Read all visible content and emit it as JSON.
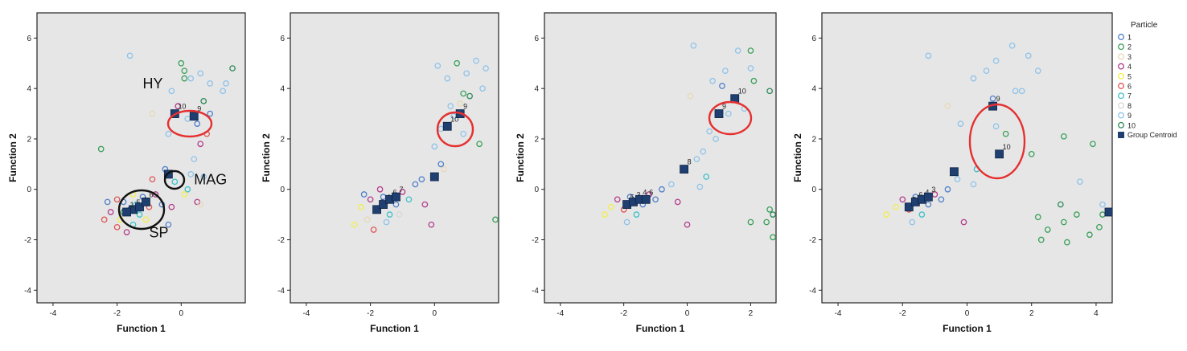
{
  "legend": {
    "title": "Particle",
    "items": [
      {
        "label": "1",
        "color": "#4f7fc9"
      },
      {
        "label": "2",
        "color": "#3aa05a"
      },
      {
        "label": "3",
        "color": "#e6d9b8"
      },
      {
        "label": "4",
        "color": "#b23a8a"
      },
      {
        "label": "5",
        "color": "#f3ee4a"
      },
      {
        "label": "6",
        "color": "#e05555"
      },
      {
        "label": "7",
        "color": "#3ec1c9"
      },
      {
        "label": "8",
        "color": "#d8d8d8"
      },
      {
        "label": "9",
        "color": "#8fc3ea"
      },
      {
        "label": "10",
        "color": "#2f8a5a"
      }
    ],
    "centroid_label": "Group Centroid",
    "centroid_color": "#1f3f70"
  },
  "annotation_color": "#e53030",
  "chart_data": [
    {
      "type": "scatter",
      "xlabel": "Function 1",
      "ylabel": "Function 2",
      "xlim": [
        -4.5,
        2.0
      ],
      "ylim": [
        -4.5,
        7.0
      ],
      "xticks": [
        -4,
        -2,
        0
      ],
      "yticks": [
        -4,
        -2,
        0,
        2,
        4,
        6
      ],
      "points": [
        {
          "x": -1.8,
          "y": -0.5,
          "c": 0
        },
        {
          "x": -1.6,
          "y": -0.8,
          "c": 0
        },
        {
          "x": -1.4,
          "y": -0.6,
          "c": 6
        },
        {
          "x": -2.0,
          "y": -0.4,
          "c": 5
        },
        {
          "x": -2.2,
          "y": -0.9,
          "c": 3
        },
        {
          "x": -1.9,
          "y": -1.2,
          "c": 4
        },
        {
          "x": -1.5,
          "y": -1.4,
          "c": 6
        },
        {
          "x": -1.2,
          "y": -0.3,
          "c": 0
        },
        {
          "x": -1.0,
          "y": -0.7,
          "c": 5
        },
        {
          "x": -2.4,
          "y": -1.2,
          "c": 5
        },
        {
          "x": -1.7,
          "y": -1.7,
          "c": 3
        },
        {
          "x": -2.3,
          "y": -0.5,
          "c": 0
        },
        {
          "x": -1.3,
          "y": -1.0,
          "c": 6
        },
        {
          "x": -0.9,
          "y": 0.4,
          "c": 5
        },
        {
          "x": -1.1,
          "y": -1.2,
          "c": 4
        },
        {
          "x": -2.0,
          "y": -1.5,
          "c": 5
        },
        {
          "x": -0.8,
          "y": -0.2,
          "c": 3
        },
        {
          "x": -1.5,
          "y": -0.2,
          "c": 4
        },
        {
          "x": -2.5,
          "y": 1.6,
          "c": 1
        },
        {
          "x": -1.8,
          "y": -0.9,
          "c": 9
        },
        {
          "x": -0.6,
          "y": -0.6,
          "c": 0
        },
        {
          "x": -0.3,
          "y": -0.7,
          "c": 3
        },
        {
          "x": -0.5,
          "y": 0.8,
          "c": 0
        },
        {
          "x": -0.2,
          "y": 0.3,
          "c": 6
        },
        {
          "x": 0.3,
          "y": 0.6,
          "c": 8
        },
        {
          "x": 0.2,
          "y": 0.0,
          "c": 6
        },
        {
          "x": 0.5,
          "y": -0.5,
          "c": 3
        },
        {
          "x": 0.7,
          "y": 0.5,
          "c": 8
        },
        {
          "x": -0.4,
          "y": -1.4,
          "c": 0
        },
        {
          "x": 0.1,
          "y": -0.2,
          "c": 4
        },
        {
          "x": -1.6,
          "y": 5.3,
          "c": 8
        },
        {
          "x": 0.0,
          "y": 5.0,
          "c": 1
        },
        {
          "x": 0.1,
          "y": 4.7,
          "c": 1
        },
        {
          "x": 0.3,
          "y": 4.4,
          "c": 8
        },
        {
          "x": 0.6,
          "y": 4.6,
          "c": 8
        },
        {
          "x": 0.9,
          "y": 4.2,
          "c": 8
        },
        {
          "x": 1.6,
          "y": 4.8,
          "c": 9
        },
        {
          "x": 1.3,
          "y": 3.9,
          "c": 8
        },
        {
          "x": 0.7,
          "y": 3.5,
          "c": 9
        },
        {
          "x": -0.3,
          "y": 3.9,
          "c": 8
        },
        {
          "x": -0.1,
          "y": 3.3,
          "c": 3
        },
        {
          "x": 0.2,
          "y": 2.8,
          "c": 8
        },
        {
          "x": 0.5,
          "y": 2.6,
          "c": 0
        },
        {
          "x": 0.8,
          "y": 2.2,
          "c": 5
        },
        {
          "x": 0.6,
          "y": 1.8,
          "c": 3
        },
        {
          "x": -0.9,
          "y": 3.0,
          "c": 2
        },
        {
          "x": -0.4,
          "y": 2.2,
          "c": 8
        },
        {
          "x": 0.4,
          "y": 1.2,
          "c": 8
        },
        {
          "x": 0.1,
          "y": 4.4,
          "c": 1
        },
        {
          "x": 0.6,
          "y": -0.6,
          "c": 2
        },
        {
          "x": 1.4,
          "y": 4.2,
          "c": 8
        },
        {
          "x": 0.9,
          "y": 3.0,
          "c": 0
        }
      ],
      "centroids": [
        {
          "x": -1.5,
          "y": -0.8,
          "label": "5"
        },
        {
          "x": -1.3,
          "y": -0.7,
          "label": "4"
        },
        {
          "x": -1.1,
          "y": -0.5,
          "label": "6"
        },
        {
          "x": -1.7,
          "y": -0.9,
          "label": "1"
        },
        {
          "x": -0.4,
          "y": 0.6,
          "label": ""
        },
        {
          "x": -0.2,
          "y": 3.0,
          "label": "10"
        },
        {
          "x": 0.4,
          "y": 2.9,
          "label": "9"
        }
      ],
      "annotations": [
        {
          "text": "HY",
          "x": -1.2,
          "y": 4.0
        },
        {
          "text": "MAG",
          "x": 0.4,
          "y": 0.2
        },
        {
          "text": "SP",
          "x": -1.0,
          "y": -1.9
        }
      ]
    },
    {
      "type": "scatter",
      "xlabel": "Function 1",
      "ylabel": "Function 2",
      "xlim": [
        -4.5,
        2.0
      ],
      "ylim": [
        -4.5,
        7.0
      ],
      "xticks": [
        -4,
        -2,
        0
      ],
      "yticks": [
        -4,
        -2,
        0,
        2,
        4,
        6
      ],
      "points": [
        {
          "x": -2.0,
          "y": -0.4,
          "c": 3
        },
        {
          "x": -1.8,
          "y": -0.8,
          "c": 5
        },
        {
          "x": -1.6,
          "y": -0.3,
          "c": 0
        },
        {
          "x": -1.4,
          "y": -1.0,
          "c": 6
        },
        {
          "x": -2.3,
          "y": -0.7,
          "c": 4
        },
        {
          "x": -2.1,
          "y": -1.2,
          "c": 2
        },
        {
          "x": -1.2,
          "y": -0.6,
          "c": 0
        },
        {
          "x": -1.0,
          "y": -0.1,
          "c": 3
        },
        {
          "x": -2.5,
          "y": -1.4,
          "c": 4
        },
        {
          "x": -1.9,
          "y": -1.6,
          "c": 5
        },
        {
          "x": -0.8,
          "y": -0.4,
          "c": 6
        },
        {
          "x": -1.5,
          "y": -1.3,
          "c": 8
        },
        {
          "x": -0.6,
          "y": 0.2,
          "c": 0
        },
        {
          "x": -0.3,
          "y": -0.6,
          "c": 3
        },
        {
          "x": -1.7,
          "y": 0.0,
          "c": 3
        },
        {
          "x": -2.2,
          "y": -0.2,
          "c": 0
        },
        {
          "x": -0.1,
          "y": -1.4,
          "c": 3
        },
        {
          "x": 0.3,
          "y": 0.8,
          "c": 2
        },
        {
          "x": 0.0,
          "y": 1.7,
          "c": 8
        },
        {
          "x": 0.2,
          "y": 2.4,
          "c": 8
        },
        {
          "x": 0.5,
          "y": 3.3,
          "c": 8
        },
        {
          "x": 0.1,
          "y": 4.9,
          "c": 8
        },
        {
          "x": 0.7,
          "y": 5.0,
          "c": 1
        },
        {
          "x": 1.0,
          "y": 4.6,
          "c": 8
        },
        {
          "x": 1.3,
          "y": 5.1,
          "c": 8
        },
        {
          "x": 1.6,
          "y": 4.8,
          "c": 8
        },
        {
          "x": 1.1,
          "y": 3.7,
          "c": 9
        },
        {
          "x": 1.5,
          "y": 4.0,
          "c": 8
        },
        {
          "x": 1.4,
          "y": 1.8,
          "c": 1
        },
        {
          "x": 0.9,
          "y": 2.2,
          "c": 8
        },
        {
          "x": 0.6,
          "y": 2.9,
          "c": 8
        },
        {
          "x": 0.8,
          "y": 3.4,
          "c": 2
        },
        {
          "x": 0.4,
          "y": 4.4,
          "c": 8
        },
        {
          "x": -0.4,
          "y": 0.4,
          "c": 0
        },
        {
          "x": 0.2,
          "y": 1.0,
          "c": 0
        },
        {
          "x": -1.1,
          "y": -1.0,
          "c": 7
        },
        {
          "x": 1.9,
          "y": -1.2,
          "c": 1
        },
        {
          "x": 0.9,
          "y": 3.8,
          "c": 1
        }
      ],
      "centroids": [
        {
          "x": -1.8,
          "y": -0.8,
          "label": "5"
        },
        {
          "x": -1.6,
          "y": -0.6,
          "label": "4"
        },
        {
          "x": -1.4,
          "y": -0.4,
          "label": "6"
        },
        {
          "x": -1.2,
          "y": -0.3,
          "label": "7"
        },
        {
          "x": 0.0,
          "y": 0.5,
          "label": ""
        },
        {
          "x": 0.4,
          "y": 2.5,
          "label": "10"
        },
        {
          "x": 0.8,
          "y": 3.0,
          "label": "9"
        }
      ],
      "annotations": []
    },
    {
      "type": "scatter",
      "xlabel": "Function 1",
      "ylabel": "Function 2",
      "xlim": [
        -4.5,
        2.8
      ],
      "ylim": [
        -4.5,
        7.0
      ],
      "xticks": [
        -4,
        -2,
        0,
        2
      ],
      "yticks": [
        -4,
        -2,
        0,
        2,
        4,
        6
      ],
      "points": [
        {
          "x": -2.2,
          "y": -0.4,
          "c": 3
        },
        {
          "x": -2.0,
          "y": -0.8,
          "c": 5
        },
        {
          "x": -1.8,
          "y": -0.3,
          "c": 0
        },
        {
          "x": -1.6,
          "y": -1.0,
          "c": 6
        },
        {
          "x": -2.4,
          "y": -0.7,
          "c": 4
        },
        {
          "x": -2.6,
          "y": -1.0,
          "c": 4
        },
        {
          "x": -1.4,
          "y": -0.6,
          "c": 0
        },
        {
          "x": -1.2,
          "y": -0.2,
          "c": 3
        },
        {
          "x": -1.9,
          "y": -1.3,
          "c": 8
        },
        {
          "x": -1.0,
          "y": -0.4,
          "c": 0
        },
        {
          "x": -0.8,
          "y": 0.0,
          "c": 0
        },
        {
          "x": -0.5,
          "y": 0.2,
          "c": 8
        },
        {
          "x": -0.3,
          "y": -0.5,
          "c": 3
        },
        {
          "x": 0.0,
          "y": -1.4,
          "c": 3
        },
        {
          "x": 0.4,
          "y": 0.1,
          "c": 8
        },
        {
          "x": 0.6,
          "y": 0.5,
          "c": 6
        },
        {
          "x": 0.3,
          "y": 1.2,
          "c": 8
        },
        {
          "x": 0.7,
          "y": 2.3,
          "c": 8
        },
        {
          "x": 0.1,
          "y": 3.7,
          "c": 2
        },
        {
          "x": 0.2,
          "y": 5.7,
          "c": 8
        },
        {
          "x": 0.8,
          "y": 4.3,
          "c": 8
        },
        {
          "x": 1.2,
          "y": 4.7,
          "c": 8
        },
        {
          "x": 1.6,
          "y": 5.5,
          "c": 8
        },
        {
          "x": 2.0,
          "y": 5.5,
          "c": 1
        },
        {
          "x": 2.0,
          "y": 4.8,
          "c": 8
        },
        {
          "x": 2.1,
          "y": 4.3,
          "c": 1
        },
        {
          "x": 1.3,
          "y": 3.0,
          "c": 8
        },
        {
          "x": 0.9,
          "y": 2.0,
          "c": 8
        },
        {
          "x": 1.8,
          "y": 3.2,
          "c": 8
        },
        {
          "x": 2.5,
          "y": -1.3,
          "c": 1
        },
        {
          "x": 2.6,
          "y": -0.8,
          "c": 1
        },
        {
          "x": 2.7,
          "y": -1.9,
          "c": 1
        },
        {
          "x": 2.0,
          "y": -1.3,
          "c": 1
        },
        {
          "x": 2.7,
          "y": -1.0,
          "c": 9
        },
        {
          "x": 0.5,
          "y": 1.5,
          "c": 8
        },
        {
          "x": 1.1,
          "y": 4.1,
          "c": 0
        },
        {
          "x": 2.6,
          "y": 3.9,
          "c": 9
        }
      ],
      "centroids": [
        {
          "x": -1.9,
          "y": -0.6,
          "label": "5"
        },
        {
          "x": -1.7,
          "y": -0.5,
          "label": "3"
        },
        {
          "x": -1.5,
          "y": -0.4,
          "label": "4"
        },
        {
          "x": -1.3,
          "y": -0.4,
          "label": "6"
        },
        {
          "x": -0.1,
          "y": 0.8,
          "label": "8"
        },
        {
          "x": 1.0,
          "y": 3.0,
          "label": "9"
        },
        {
          "x": 1.5,
          "y": 3.6,
          "label": "10"
        }
      ],
      "annotations": []
    },
    {
      "type": "scatter",
      "xlabel": "Function 1",
      "ylabel": "Function 2",
      "xlim": [
        -4.5,
        4.5
      ],
      "ylim": [
        -4.5,
        7.0
      ],
      "xticks": [
        -4,
        -2,
        0,
        2,
        4
      ],
      "yticks": [
        -4,
        -2,
        0,
        2,
        4,
        6
      ],
      "points": [
        {
          "x": -2.0,
          "y": -0.4,
          "c": 3
        },
        {
          "x": -1.8,
          "y": -0.8,
          "c": 5
        },
        {
          "x": -1.6,
          "y": -0.3,
          "c": 0
        },
        {
          "x": -1.4,
          "y": -1.0,
          "c": 6
        },
        {
          "x": -2.2,
          "y": -0.7,
          "c": 4
        },
        {
          "x": -2.5,
          "y": -1.0,
          "c": 4
        },
        {
          "x": -1.2,
          "y": -0.6,
          "c": 0
        },
        {
          "x": -1.0,
          "y": -0.2,
          "c": 3
        },
        {
          "x": -1.7,
          "y": -1.3,
          "c": 8
        },
        {
          "x": -0.8,
          "y": -0.4,
          "c": 0
        },
        {
          "x": -0.6,
          "y": 0.0,
          "c": 0
        },
        {
          "x": -0.3,
          "y": 0.4,
          "c": 8
        },
        {
          "x": -0.1,
          "y": -1.3,
          "c": 3
        },
        {
          "x": 0.2,
          "y": 0.2,
          "c": 8
        },
        {
          "x": 0.3,
          "y": 0.8,
          "c": 6
        },
        {
          "x": -0.2,
          "y": 2.6,
          "c": 8
        },
        {
          "x": -0.6,
          "y": 3.3,
          "c": 2
        },
        {
          "x": -1.2,
          "y": 5.3,
          "c": 8
        },
        {
          "x": 0.2,
          "y": 4.4,
          "c": 8
        },
        {
          "x": 0.6,
          "y": 4.7,
          "c": 8
        },
        {
          "x": 0.9,
          "y": 5.1,
          "c": 8
        },
        {
          "x": 1.4,
          "y": 5.7,
          "c": 8
        },
        {
          "x": 1.9,
          "y": 5.3,
          "c": 8
        },
        {
          "x": 2.2,
          "y": 4.7,
          "c": 8
        },
        {
          "x": 1.7,
          "y": 3.9,
          "c": 8
        },
        {
          "x": 0.9,
          "y": 2.5,
          "c": 8
        },
        {
          "x": 1.2,
          "y": 2.2,
          "c": 1
        },
        {
          "x": 2.0,
          "y": 1.4,
          "c": 1
        },
        {
          "x": 2.2,
          "y": -1.1,
          "c": 1
        },
        {
          "x": 2.5,
          "y": -1.6,
          "c": 1
        },
        {
          "x": 3.0,
          "y": -1.3,
          "c": 1
        },
        {
          "x": 3.4,
          "y": -1.0,
          "c": 1
        },
        {
          "x": 3.8,
          "y": -1.8,
          "c": 1
        },
        {
          "x": 4.2,
          "y": -1.0,
          "c": 1
        },
        {
          "x": 2.3,
          "y": -2.0,
          "c": 1
        },
        {
          "x": 3.1,
          "y": -2.1,
          "c": 1
        },
        {
          "x": 3.9,
          "y": 1.8,
          "c": 1
        },
        {
          "x": 3.0,
          "y": 2.1,
          "c": 1
        },
        {
          "x": 2.9,
          "y": -0.6,
          "c": 9
        },
        {
          "x": 3.5,
          "y": 0.3,
          "c": 8
        },
        {
          "x": 4.2,
          "y": -0.6,
          "c": 8
        },
        {
          "x": 4.1,
          "y": -1.5,
          "c": 1
        },
        {
          "x": 0.8,
          "y": 3.6,
          "c": 0
        },
        {
          "x": 1.5,
          "y": 3.9,
          "c": 8
        }
      ],
      "centroids": [
        {
          "x": -1.8,
          "y": -0.7,
          "label": "5"
        },
        {
          "x": -1.6,
          "y": -0.5,
          "label": "6"
        },
        {
          "x": -1.4,
          "y": -0.4,
          "label": "4"
        },
        {
          "x": -1.2,
          "y": -0.3,
          "label": "3"
        },
        {
          "x": -0.4,
          "y": 0.7,
          "label": ""
        },
        {
          "x": 0.8,
          "y": 3.3,
          "label": "9"
        },
        {
          "x": 1.0,
          "y": 1.4,
          "label": "10"
        },
        {
          "x": 4.4,
          "y": -0.9,
          "label": "2"
        }
      ],
      "annotations": []
    }
  ]
}
